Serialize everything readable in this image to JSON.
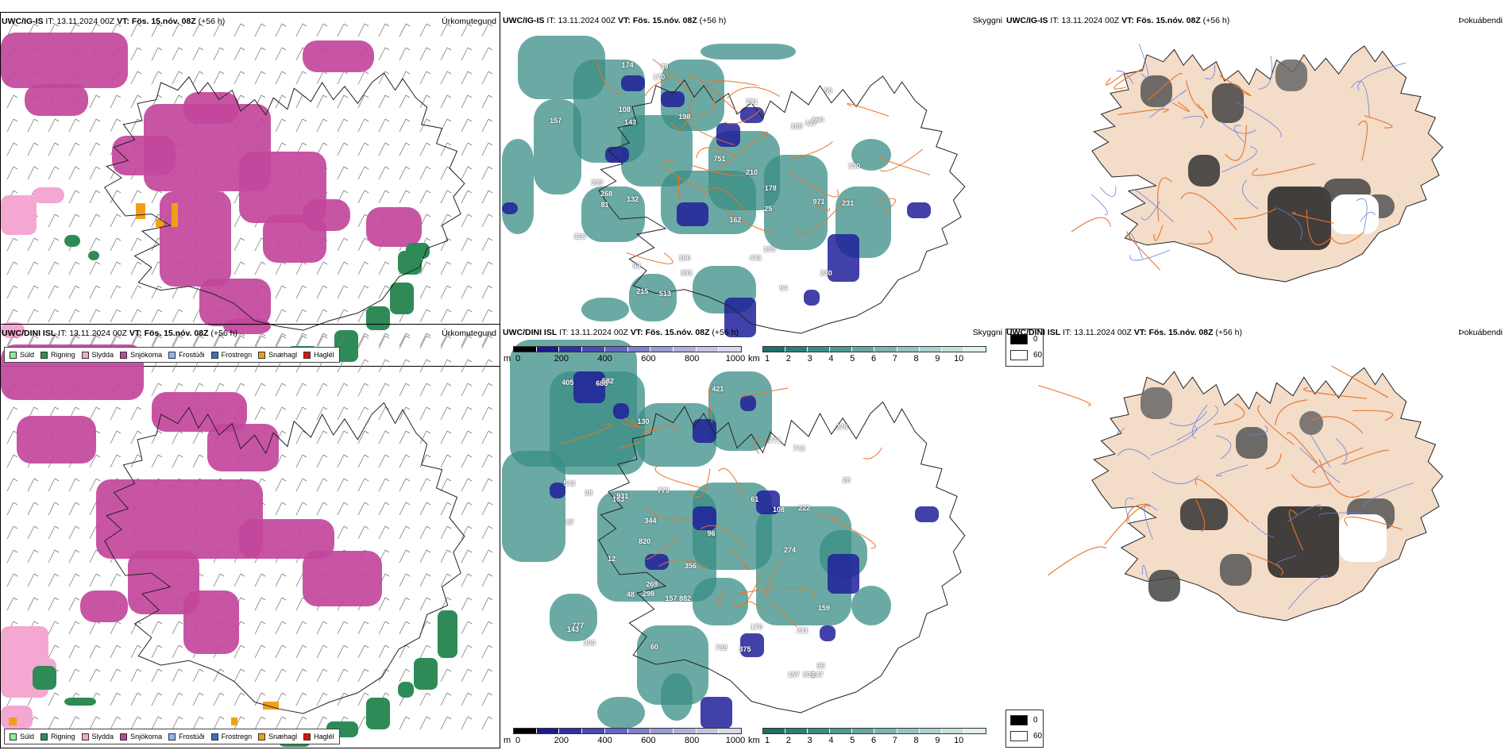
{
  "rows": [
    {
      "panels": {
        "precip": {
          "model": "UWC/IG-IS",
          "it_label": "IT:",
          "it_value": "13.11.2024 00Z",
          "vt_label": "VT:",
          "vt_value": "Fös. 15.nóv. 08Z",
          "lead": "(+56 h)",
          "title": "Úrkomutegund"
        },
        "visibility": {
          "model": "UWC/IG-IS",
          "it_label": "IT:",
          "it_value": "13.11.2024 00Z",
          "vt_label": "VT:",
          "vt_value": "Fös. 15.nóv. 08Z",
          "lead": "(+56 h)",
          "title": "Skyggni"
        },
        "fog": {
          "model": "UWC/IG-IS",
          "it_label": "IT:",
          "it_value": "13.11.2024 00Z",
          "vt_label": "VT:",
          "vt_value": "Fös. 15.nóv. 08Z",
          "lead": "(+56 h)",
          "title": "Þokuábendi"
        }
      },
      "vis_labels": [
        "231",
        "443",
        "185",
        "198",
        "108",
        "215",
        "751",
        "230",
        "330",
        "210",
        "157",
        "174",
        "326",
        "971",
        "39",
        "268",
        "427",
        "195",
        "143",
        "132",
        "162",
        "281",
        "393",
        "513",
        "25",
        "178",
        "170",
        "94",
        "190",
        "860",
        "389",
        "56",
        "63",
        "81"
      ]
    },
    {
      "panels": {
        "precip": {
          "model": "UWC/DINI ISL",
          "it_label": "IT:",
          "it_value": "13.11.2024 00Z",
          "vt_label": "VT:",
          "vt_value": "Fös. 15.nóv. 08Z",
          "lead": "(+56 h)",
          "title": "Úrkomutegund"
        },
        "visibility": {
          "model": "UWC/DINI ISL",
          "it_label": "IT:",
          "it_value": "13.11.2024 00Z",
          "vt_label": "VT:",
          "vt_value": "Fös. 15.nóv. 08Z",
          "lead": "(+56 h)",
          "title": "Skyggni"
        },
        "fog": {
          "model": "UWC/DINI ISL",
          "it_label": "IT:",
          "it_value": "13.11.2024 00Z",
          "vt_label": "VT:",
          "vt_value": "Fös. 15.nóv. 08Z",
          "lead": "(+56 h)",
          "title": "Þokuábendi"
        }
      },
      "vis_labels": [
        "356",
        "163",
        "688",
        "274",
        "247",
        "130",
        "882",
        "820",
        "298",
        "108",
        "222",
        "421",
        "405",
        "157",
        "344",
        "170",
        "96",
        "28",
        "278",
        "779",
        "801",
        "931",
        "375",
        "48",
        "211",
        "61",
        "738",
        "777",
        "742",
        "143",
        "269",
        "157",
        "300",
        "159",
        "771",
        "543",
        "28",
        "582",
        "12",
        "60",
        "87",
        "99"
      ]
    }
  ],
  "precip_legend": [
    {
      "label": "Súld",
      "color": "#90ee90"
    },
    {
      "label": "Rigning",
      "color": "#2e8b57"
    },
    {
      "label": "Slydda",
      "color": "#f4a7d0"
    },
    {
      "label": "Snjókoma",
      "color": "#c2479c"
    },
    {
      "label": "Frostúði",
      "color": "#87b9ee"
    },
    {
      "label": "Frostregn",
      "color": "#3e6fb8"
    },
    {
      "label": "Snæhagl",
      "color": "#f0a018"
    },
    {
      "label": "Haglél",
      "color": "#e01010"
    }
  ],
  "vis_scale_m": {
    "unit": "m",
    "ticks": [
      "0",
      "200",
      "400",
      "600",
      "800",
      "1000"
    ],
    "colors": [
      "#000000",
      "#1a1a8c",
      "#3030a8",
      "#4a4ab8",
      "#6464c4",
      "#8080cc",
      "#9a9ad4",
      "#b0b0dc",
      "#c4c4e4",
      "#d8d8ee"
    ]
  },
  "vis_scale_km": {
    "unit": "km",
    "ticks": [
      "1",
      "2",
      "3",
      "4",
      "5",
      "6",
      "7",
      "8",
      "9",
      "10"
    ],
    "colors": [
      "#1f6f6a",
      "#2b7f79",
      "#3a8d86",
      "#4e9a93",
      "#65a8a1",
      "#7cb6af",
      "#94c4be",
      "#acd2cd",
      "#c6e1dd",
      "#e2f0ee"
    ]
  },
  "fog_key": [
    {
      "label": "0",
      "color": "#000000"
    },
    {
      "label": "60",
      "color": "#ffffff"
    }
  ],
  "colors": {
    "snow": "#c2479c",
    "rain": "#2e8b57",
    "sleet": "#f4a7d0",
    "hail_snow": "#f0a018",
    "teal": "#3a8d86",
    "roads": "#e8732a",
    "land_fog": "#f3dcc8",
    "rivers": "#6a7fe0"
  }
}
